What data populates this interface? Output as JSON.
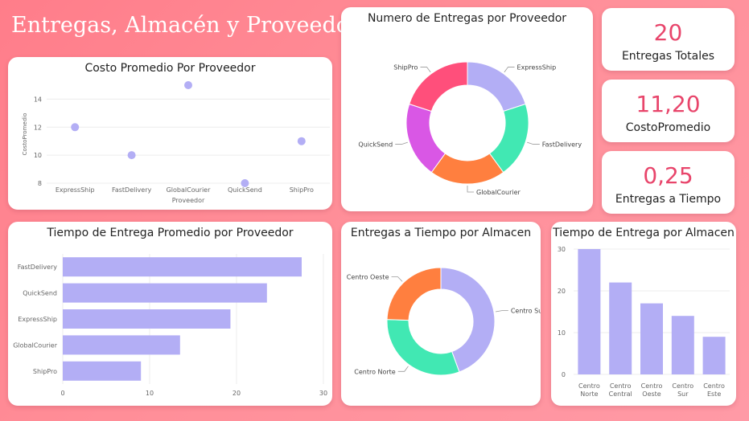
{
  "dashboard": {
    "title": "Entregas, Almacén y Proveedor"
  },
  "kpis": [
    {
      "value": "20",
      "label": "Entregas Totales"
    },
    {
      "value": "11,20",
      "label": "CostoPromedio"
    },
    {
      "value": "0,25",
      "label": "Entregas a Tiempo"
    }
  ],
  "colors": {
    "accent": "#e8456b",
    "bar": "#b3aef5",
    "grid": "#ececec",
    "axis_text": "#666666"
  },
  "chart_data": [
    {
      "id": "costo",
      "type": "scatter",
      "title": "Costo Promedio Por Proveedor",
      "xlabel": "Proveedor",
      "ylabel": "CostoPromedio",
      "categories": [
        "ExpressShip",
        "FastDelivery",
        "GlobalCourier",
        "QuickSend",
        "ShipPro"
      ],
      "values": [
        12,
        10,
        15,
        8,
        11
      ],
      "yticks": [
        8,
        10,
        12,
        14
      ],
      "ylim": [
        8,
        15
      ]
    },
    {
      "id": "entregas_prov",
      "type": "pie",
      "title": "Numero de Entregas por Proveedor",
      "labels": [
        "ExpressShip",
        "FastDelivery",
        "GlobalCourier",
        "QuickSend",
        "ShipPro"
      ],
      "values": [
        4,
        4,
        4,
        4,
        4
      ],
      "colors": [
        "#b3aef5",
        "#41e8b3",
        "#ff7f3f",
        "#d957e5",
        "#ff4f7b"
      ]
    },
    {
      "id": "tiempo_prov",
      "type": "bar",
      "orientation": "horizontal",
      "title": "Tiempo de Entrega Promedio por Proveedor",
      "categories": [
        "FastDelivery",
        "QuickSend",
        "ExpressShip",
        "GlobalCourier",
        "ShipPro"
      ],
      "values": [
        27.5,
        23.5,
        19.3,
        13.5,
        9
      ],
      "xticks": [
        0,
        10,
        20,
        30
      ],
      "xlim": [
        0,
        30
      ]
    },
    {
      "id": "tiempo_alm_pie",
      "type": "pie",
      "title": "Entregas a Tiempo por Almacen",
      "labels": [
        "Centro Sur",
        "Centro Norte",
        "Centro Oeste"
      ],
      "values": [
        2,
        1.4,
        1.1
      ],
      "colors": [
        "#b3aef5",
        "#41e8b3",
        "#ff7f3f"
      ]
    },
    {
      "id": "tiempo_alm_bar",
      "type": "bar",
      "title": "Tiempo de Entrega por Almacen",
      "categories": [
        "Centro Norte",
        "Centro Central",
        "Centro Oeste",
        "Centro Sur",
        "Centro Este"
      ],
      "values": [
        30,
        22,
        17,
        14,
        9
      ],
      "yticks": [
        0,
        10,
        20,
        30
      ],
      "ylim": [
        0,
        30
      ]
    }
  ]
}
